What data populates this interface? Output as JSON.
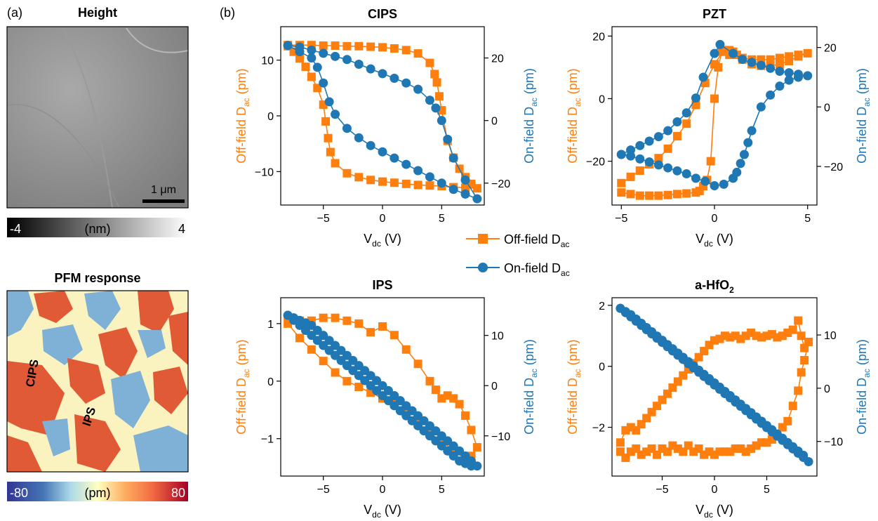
{
  "panel_labels": {
    "a": "(a)",
    "b": "(b)"
  },
  "height_map": {
    "title": "Height",
    "scalebar": "1 μm",
    "colorbar": {
      "min": "-4",
      "unit": "(nm)",
      "max": "4"
    }
  },
  "pfm_map": {
    "title": "PFM response",
    "labels": [
      "CIPS",
      "IPS"
    ],
    "colorbar": {
      "min": "-80",
      "unit": "(pm)",
      "max": "80"
    }
  },
  "legend": {
    "off_label": "Off-field D",
    "off_sub": "ac",
    "on_label": "On-field D",
    "on_sub": "ac"
  },
  "colors": {
    "off_field": "#ff7f0e",
    "on_field": "#1f77b4"
  },
  "chart_data": [
    {
      "type": "line",
      "title": "CIPS",
      "title_sub": "",
      "xlabel": "V",
      "xlabel_sub": "dc",
      "xlabel_unit": "(V)",
      "ylabel_left": "Off-field D",
      "ylabel_left_sub": "ac",
      "ylabel_left_unit": "(pm)",
      "ylabel_right": "On-field D",
      "ylabel_right_sub": "ac",
      "ylabel_right_unit": "(pm)",
      "xlim": [
        -8.6,
        8.6
      ],
      "ylim_left": [
        -16,
        16
      ],
      "ylim_right": [
        -27,
        30
      ],
      "xticks": [
        -5,
        0,
        5
      ],
      "yticks_left": [
        -10,
        0,
        10
      ],
      "yticks_right": [
        -20,
        0,
        20
      ],
      "series": [
        {
          "name": "Off-field Dac",
          "axis": "left",
          "marker": "square",
          "x": [
            -8,
            -7.5,
            -7,
            -6.5,
            -6,
            -5.5,
            -5,
            -4.8,
            -4.6,
            -4.4,
            -4,
            -3,
            -2,
            -1,
            0,
            1,
            2,
            3,
            4,
            5,
            6,
            7,
            8,
            7.5,
            7,
            6.5,
            6,
            5.5,
            5,
            4.8,
            4.6,
            4.4,
            4,
            3,
            2,
            1,
            0,
            -1,
            -2,
            -3,
            -4,
            -5,
            -6,
            -7,
            -8
          ],
          "y": [
            12.5,
            11.5,
            10.3,
            8.8,
            7,
            5,
            2,
            -1,
            -4,
            -6.5,
            -8.5,
            -10.3,
            -11,
            -11.5,
            -11.8,
            -12,
            -12.2,
            -12.4,
            -12.5,
            -12.6,
            -12.8,
            -12.9,
            -13,
            -12.2,
            -11,
            -9.5,
            -7.5,
            -4.5,
            1,
            3.5,
            6,
            7.5,
            9.5,
            11.2,
            11.8,
            12.1,
            12.3,
            12.4,
            12.5,
            12.5,
            12.6,
            12.6,
            12.7,
            12.7,
            12.7
          ]
        },
        {
          "name": "On-field Dac",
          "axis": "right",
          "marker": "circle",
          "x": [
            -8,
            -7,
            -6,
            -5.5,
            -5,
            -4.5,
            -4,
            -3,
            -2,
            -1,
            0,
            1,
            2,
            3,
            4,
            5,
            6,
            7,
            8,
            7,
            6,
            5.5,
            5,
            4.5,
            4,
            3,
            2,
            1,
            0,
            -1,
            -2,
            -3,
            -4,
            -5,
            -6,
            -7,
            -8
          ],
          "y": [
            24,
            22,
            20,
            17,
            12,
            6,
            2,
            -2.5,
            -5.5,
            -8,
            -10,
            -12,
            -14,
            -16,
            -18,
            -20,
            -22,
            -23.5,
            -25,
            -19,
            -12,
            -6,
            0,
            4,
            6.5,
            10,
            12,
            13.5,
            15,
            16.5,
            18,
            19.5,
            20.5,
            21.5,
            22.5,
            23.5,
            24
          ]
        }
      ]
    },
    {
      "type": "line",
      "title": "PZT",
      "title_sub": "",
      "xlabel": "V",
      "xlabel_sub": "dc",
      "xlabel_unit": "(V)",
      "ylabel_left": "Off-field D",
      "ylabel_left_sub": "ac",
      "ylabel_left_unit": "(pm)",
      "ylabel_right": "On-field D",
      "ylabel_right_sub": "ac",
      "ylabel_right_unit": "(pm)",
      "xlim": [
        -5.5,
        5.5
      ],
      "ylim_left": [
        -34,
        23
      ],
      "ylim_right": [
        -33,
        27
      ],
      "xticks": [
        -5,
        0,
        5
      ],
      "yticks_left": [
        -20,
        0,
        20
      ],
      "yticks_right": [
        -20,
        0,
        20
      ],
      "series": [
        {
          "name": "Off-field Dac",
          "axis": "left",
          "marker": "square",
          "x": [
            -5,
            -4.5,
            -4,
            -3.5,
            -3,
            -2.5,
            -2,
            -1.5,
            -1,
            -0.8,
            -0.6,
            -0.4,
            -0.2,
            0,
            0.2,
            0.4,
            0.8,
            1.5,
            2,
            2.5,
            3,
            3.5,
            4,
            4.5,
            5,
            4.5,
            4,
            3.5,
            3,
            2.5,
            2,
            1.5,
            1.2,
            1,
            0.8,
            0.5,
            0,
            -0.5,
            -1,
            -1.5,
            -2,
            -2.5,
            -3,
            -3.5,
            -4,
            -4.5,
            -5
          ],
          "y": [
            -30,
            -30.5,
            -31,
            -31,
            -31,
            -30.8,
            -30.5,
            -30.3,
            -30,
            -29.5,
            -28,
            -26,
            -20,
            0,
            10,
            15,
            14,
            12.5,
            11,
            10.5,
            10.5,
            11,
            12,
            13.5,
            14.5,
            14,
            13.5,
            13,
            12.5,
            12.5,
            12.5,
            13,
            14,
            15,
            15.5,
            15.5,
            11,
            5,
            -2,
            -8,
            -12,
            -16,
            -19,
            -21,
            -23,
            -25,
            -27
          ]
        },
        {
          "name": "On-field Dac",
          "axis": "right",
          "marker": "circle",
          "x": [
            -5,
            -4.5,
            -4,
            -3.5,
            -3,
            -2.5,
            -2,
            -1.5,
            -1,
            -0.6,
            0,
            0.3,
            1,
            1.5,
            2,
            2.5,
            3,
            3.5,
            4,
            4.5,
            5,
            4.5,
            4,
            3.5,
            3,
            2.5,
            2,
            1.8,
            1.6,
            1.4,
            1.2,
            1,
            0.5,
            0,
            -0.5,
            -1,
            -1.5,
            -2,
            -2.5,
            -3,
            -3.5,
            -4,
            -4.5,
            -5
          ],
          "y": [
            -16,
            -14.5,
            -13,
            -11.5,
            -10,
            -8,
            -5,
            -2,
            3,
            10,
            18,
            21,
            18,
            16,
            15,
            14,
            13,
            12,
            11.5,
            11,
            10.5,
            10,
            9,
            7,
            4,
            0,
            -8,
            -12,
            -16,
            -19,
            -22,
            -24,
            -26,
            -26.5,
            -25,
            -24,
            -22.5,
            -21.5,
            -20.5,
            -19.5,
            -18.5,
            -17.5,
            -16.5,
            -16
          ]
        }
      ]
    },
    {
      "type": "line",
      "title": "IPS",
      "title_sub": "",
      "xlabel": "V",
      "xlabel_sub": "dc",
      "xlabel_unit": "(V)",
      "ylabel_left": "Off-field D",
      "ylabel_left_sub": "ac",
      "ylabel_left_unit": "(pm)",
      "ylabel_right": "On-field D",
      "ylabel_right_sub": "ac",
      "ylabel_right_unit": "(pm)",
      "xlim": [
        -8.6,
        8.6
      ],
      "ylim_left": [
        -1.65,
        1.45
      ],
      "ylim_right": [
        -18,
        17.5
      ],
      "xticks": [
        -5,
        0,
        5
      ],
      "yticks_left": [
        -1,
        0,
        1
      ],
      "yticks_right": [
        -10,
        0,
        10
      ],
      "series": [
        {
          "name": "Off-field Dac",
          "axis": "left",
          "marker": "square",
          "x": [
            -8,
            -7,
            -6,
            -5,
            -4,
            -3,
            -2,
            -1,
            0,
            1,
            2,
            3,
            4,
            5,
            6,
            7,
            7.5,
            8,
            7.5,
            7,
            6.5,
            6,
            5.5,
            5,
            4.5,
            4,
            3,
            2,
            1,
            0,
            -1,
            -2,
            -3,
            -4,
            -5,
            -6,
            -7,
            -8
          ],
          "y": [
            1,
            0.75,
            0.55,
            0.35,
            0.15,
            0,
            -0.1,
            -0.2,
            -0.3,
            -0.4,
            -0.55,
            -0.75,
            -0.9,
            -1.05,
            -1.2,
            -1.35,
            -1.3,
            -1.15,
            -0.85,
            -0.6,
            -0.4,
            -0.3,
            -0.25,
            -0.3,
            -0.15,
            0,
            0.3,
            0.55,
            0.8,
            0.95,
            0.85,
            1,
            1.05,
            1.1,
            1.1,
            1.05,
            1.05,
            1.05
          ]
        },
        {
          "name": "On-field Dac",
          "axis": "right",
          "marker": "circle",
          "x": [
            -8,
            -7.5,
            -7,
            -6.5,
            -6,
            -5.5,
            -5,
            -4.5,
            -4,
            -3.5,
            -3,
            -2.5,
            -2,
            -1.5,
            -1,
            -0.5,
            0,
            0.5,
            1,
            1.5,
            2,
            2.5,
            3,
            3.5,
            4,
            4.5,
            5,
            5.5,
            6,
            6.5,
            7,
            7.5,
            8,
            7.5,
            7,
            6.5,
            6,
            5.5,
            5,
            4.5,
            4,
            3.5,
            3,
            2.5,
            2,
            1.5,
            1,
            0.5,
            0,
            -0.5,
            -1,
            -1.5,
            -2,
            -2.5,
            -3,
            -3.5,
            -4,
            -4.5,
            -5,
            -5.5,
            -6,
            -6.5,
            -7,
            -7.5,
            -8
          ],
          "y": [
            14,
            13,
            12,
            11,
            10,
            9,
            8,
            7,
            6,
            5,
            4,
            3,
            2,
            1,
            0,
            -1,
            -2,
            -3,
            -4,
            -5,
            -6,
            -7,
            -8,
            -9,
            -10,
            -11,
            -12,
            -13,
            -14,
            -15,
            -15.5,
            -16,
            -16,
            -15,
            -14,
            -13,
            -12,
            -11,
            -10,
            -9,
            -8,
            -7,
            -6,
            -5,
            -4,
            -3,
            -2,
            -1,
            0,
            1,
            2,
            3,
            4,
            5,
            6,
            7,
            8,
            9,
            10,
            11,
            12,
            12.5,
            13,
            13.5,
            14
          ]
        }
      ]
    },
    {
      "type": "line",
      "title": "a-HfO",
      "title_sub": "2",
      "xlabel": "V",
      "xlabel_sub": "dc",
      "xlabel_unit": "(V)",
      "ylabel_left": "Off-field D",
      "ylabel_left_sub": "ac",
      "ylabel_left_unit": "(pm)",
      "ylabel_right": "On-field D",
      "ylabel_right_sub": "ac",
      "ylabel_right_unit": "(pm)",
      "xlim": [
        -9.8,
        9.8
      ],
      "ylim_left": [
        -3.6,
        2.25
      ],
      "ylim_right": [
        -16.5,
        17
      ],
      "xticks": [
        -5,
        0,
        5
      ],
      "yticks_left": [
        -2,
        0,
        2
      ],
      "yticks_right": [
        -10,
        0,
        10
      ],
      "series": [
        {
          "name": "Off-field Dac",
          "axis": "left",
          "marker": "square",
          "x": [
            -9,
            -8.5,
            -8,
            -7.5,
            -7,
            -6.5,
            -6,
            -5.5,
            -5,
            -4.5,
            -4,
            -3.5,
            -3,
            -2.5,
            -2,
            -1.5,
            -1,
            -0.5,
            0,
            0.5,
            1,
            1.5,
            2,
            2.5,
            3,
            3.5,
            4,
            4.5,
            5,
            5.5,
            6,
            6.5,
            7,
            7.5,
            8,
            8.3,
            8.6,
            9,
            8.6,
            8.3,
            8,
            7.5,
            7,
            6.5,
            6,
            5.5,
            5,
            4.5,
            4,
            3.5,
            3,
            2.5,
            2,
            1.5,
            1,
            0.5,
            0,
            -0.5,
            -1,
            -1.5,
            -2,
            -2.5,
            -3,
            -3.5,
            -4,
            -4.5,
            -5,
            -5.5,
            -6,
            -6.5,
            -7,
            -7.5,
            -8,
            -8.5,
            -9
          ],
          "y": [
            -2.5,
            -2.1,
            -2.0,
            -2.1,
            -1.9,
            -1.7,
            -1.5,
            -1.3,
            -1.1,
            -0.9,
            -0.7,
            -0.5,
            -0.3,
            -0.1,
            0.1,
            0.3,
            0.5,
            0.7,
            0.85,
            0.9,
            1.0,
            0.95,
            1.0,
            0.9,
            1.0,
            1.1,
            1.0,
            0.95,
            1.0,
            1.05,
            0.95,
            1.0,
            1.1,
            1.2,
            1.5,
            1.0,
            0.6,
            0.8,
            0.2,
            -0.2,
            -0.8,
            -1.3,
            -1.8,
            -2.0,
            -2.3,
            -2.4,
            -2.5,
            -2.5,
            -2.6,
            -2.7,
            -2.8,
            -2.7,
            -2.7,
            -2.8,
            -2.8,
            -2.8,
            -2.9,
            -2.8,
            -2.9,
            -2.7,
            -2.8,
            -2.6,
            -2.8,
            -2.7,
            -2.6,
            -2.8,
            -2.7,
            -2.9,
            -2.7,
            -2.8,
            -2.9,
            -2.7,
            -2.8,
            -3.0,
            -2.8
          ]
        },
        {
          "name": "On-field Dac",
          "axis": "right",
          "marker": "circle",
          "x": [
            -9,
            -8.5,
            -8,
            -7.5,
            -7,
            -6.5,
            -6,
            -5.5,
            -5,
            -4.5,
            -4,
            -3.5,
            -3,
            -2.5,
            -2,
            -1.5,
            -1,
            -0.5,
            0,
            0.5,
            1,
            1.5,
            2,
            2.5,
            3,
            3.5,
            4,
            4.5,
            5,
            5.5,
            6,
            6.5,
            7,
            7.5,
            8,
            8.5,
            9,
            8.5,
            8,
            7.5,
            7,
            6.5,
            6,
            5.5,
            5,
            4.5,
            4,
            3.5,
            3,
            2.5,
            2,
            1.5,
            1,
            0.5,
            0,
            -0.5,
            -1,
            -1.5,
            -2,
            -2.5,
            -3,
            -3.5,
            -4,
            -4.5,
            -5,
            -5.5,
            -6,
            -6.5,
            -7,
            -7.5,
            -8,
            -8.5,
            -9
          ],
          "y": [
            15,
            14.2,
            13.4,
            12.6,
            11.8,
            11,
            10.2,
            9.4,
            8.6,
            7.8,
            7,
            6.2,
            5.4,
            4.6,
            3.8,
            3,
            2.2,
            1.4,
            0.6,
            -0.2,
            -1,
            -1.8,
            -2.6,
            -3.4,
            -4.2,
            -5,
            -5.8,
            -6.6,
            -7.4,
            -8.2,
            -9,
            -9.8,
            -10.6,
            -11.4,
            -12.2,
            -13,
            -13.8,
            -12.6,
            -11.8,
            -11,
            -10.2,
            -9.4,
            -8.6,
            -7.8,
            -7,
            -6.2,
            -5.4,
            -4.6,
            -3.8,
            -3,
            -2.2,
            -1.4,
            -0.6,
            0.2,
            1,
            1.8,
            2.6,
            3.4,
            4.2,
            5,
            5.8,
            6.6,
            7.4,
            8.2,
            9,
            9.8,
            10.6,
            11.4,
            12.2,
            13,
            13.8,
            14.4,
            15
          ]
        }
      ]
    }
  ]
}
